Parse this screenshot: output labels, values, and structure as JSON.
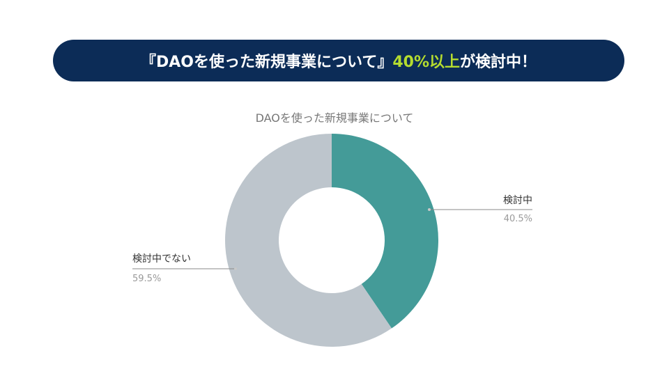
{
  "banner": {
    "prefix": "『DAOを使った新規事業について』",
    "highlight": "40%以上",
    "suffix": "が検討中！",
    "highlight_color": "#b5dc2f",
    "background_color": "#0c2c57"
  },
  "chart_data": {
    "type": "pie",
    "title": "DAOを使った新規事業について",
    "donut": true,
    "slices": [
      {
        "label": "検討中",
        "value": 40.5,
        "value_text": "40.5%",
        "color": "#449b98"
      },
      {
        "label": "検討中でない",
        "value": 59.5,
        "value_text": "59.5%",
        "color": "#bdc5cc"
      }
    ]
  }
}
